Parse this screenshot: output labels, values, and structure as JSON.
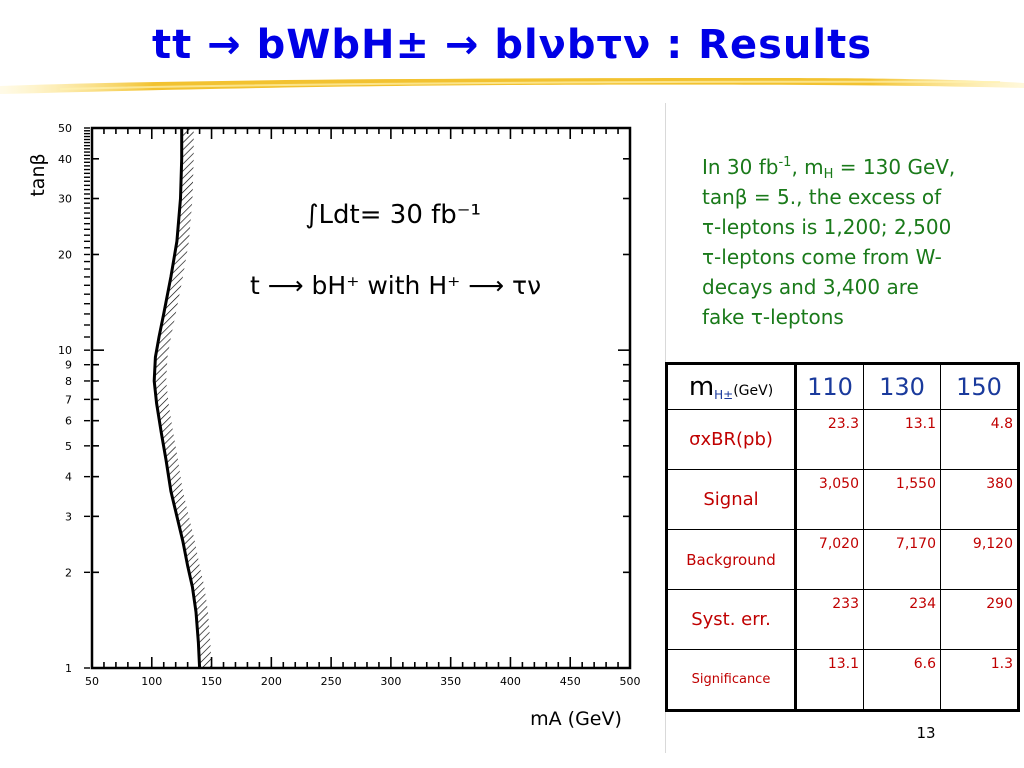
{
  "slide": {
    "title": "tt → bWbH± → blνbτν : Results",
    "page_number": "13"
  },
  "description": {
    "line1_a": "In 30 fb",
    "line1_sup": "-1",
    "line1_b": ", m",
    "line1_sub": "H",
    "line1_c": " = 130 GeV,",
    "line2": "tanβ = 5., the excess of",
    "line3": "τ-leptons is 1,200; 2,500",
    "line4": "τ-leptons come from W-",
    "line5": "decays and 3,400 are",
    "line6": "fake τ-leptons"
  },
  "table": {
    "header_symbol": "m",
    "header_sub": "H±",
    "header_unit": "(GeV)",
    "masses": [
      "110",
      "130",
      "150"
    ],
    "rows": [
      {
        "label": "σxBR(pb)",
        "values": [
          "23.3",
          "13.1",
          "4.8"
        ]
      },
      {
        "label": "Signal",
        "values": [
          "3,050",
          "1,550",
          "380"
        ]
      },
      {
        "label": "Background",
        "values": [
          "7,020",
          "7,170",
          "9,120"
        ]
      },
      {
        "label": "Syst. err.",
        "values": [
          "233",
          "234",
          "290"
        ]
      },
      {
        "label": "Significance",
        "values": [
          "13.1",
          "6.6",
          "1.3"
        ]
      }
    ]
  },
  "chart_data": {
    "type": "line",
    "title": "",
    "xlabel": "mA (GeV)",
    "ylabel": "tanβ",
    "xlim": [
      50,
      500
    ],
    "ylim": [
      1,
      50
    ],
    "y_scale": "log",
    "x_ticks": [
      "50",
      "100",
      "150",
      "200",
      "250",
      "300",
      "350",
      "400",
      "450",
      "500"
    ],
    "y_ticks": [
      "1",
      "2",
      "3",
      "4",
      "5",
      "6",
      "7",
      "8",
      "9",
      "10",
      "20",
      "30",
      "40",
      "50"
    ],
    "annotations": [
      "∫Ldt= 30 fb⁻¹",
      "t ⟶ bH⁺ with H⁺ ⟶ τν"
    ],
    "series": [
      {
        "x": [
          140,
          139,
          137,
          134,
          130,
          126,
          121,
          116,
          112,
          108,
          104,
          102,
          103,
          106,
          110,
          116,
          121,
          124,
          125,
          125
        ],
        "y": [
          1,
          1.2,
          1.5,
          1.8,
          2.1,
          2.5,
          3,
          3.6,
          4.5,
          5.5,
          6.8,
          8,
          9.5,
          11,
          13,
          17,
          22,
          30,
          40,
          50
        ]
      }
    ]
  }
}
